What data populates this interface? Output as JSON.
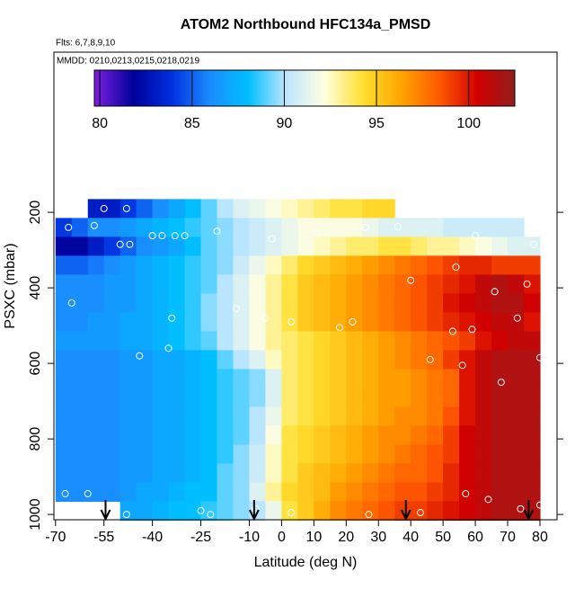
{
  "chart_data": {
    "type": "heatmap",
    "title": "ATOM2 Northbound HFC134a_PMSD",
    "subtitle": "Flts: 6,7,8,9,10",
    "annotation": "MMDD: 0210,0213,0215,0218,0219",
    "xlabel": "Latitude (deg N)",
    "ylabel": "PSXC (mbar)",
    "xlim": [
      -70.5,
      85.3
    ],
    "xticks": [
      -70,
      -55,
      -40,
      -25,
      -10,
      0,
      10,
      20,
      30,
      40,
      50,
      60,
      70,
      80
    ],
    "ylim": [
      1014,
      -224
    ],
    "yticks": [
      200,
      400,
      600,
      800,
      1000
    ],
    "colorbar_lim": [
      79.7,
      102.5
    ],
    "colorbar_ticks": [
      80,
      85,
      90,
      95,
      100
    ],
    "colorscale": [
      "#7a1fe0",
      "#00009a",
      "#0030e0",
      "#1a8cff",
      "#00bfff",
      "#bfe6ff",
      "#ffffe0",
      "#ffe030",
      "#ffa500",
      "#ff5a00",
      "#d20000",
      "#902020"
    ],
    "x_bins": [
      -70,
      -65,
      -60,
      -55,
      -50,
      -45,
      -40,
      -35,
      -30,
      -25,
      -20,
      -15,
      -10,
      -5,
      0,
      5,
      10,
      15,
      20,
      25,
      30,
      35,
      40,
      45,
      50,
      55,
      60,
      65,
      70,
      75,
      80
    ],
    "y_bins": [
      165,
      215,
      265,
      315,
      365,
      415,
      465,
      515,
      565,
      615,
      665,
      715,
      765,
      815,
      865,
      915,
      965,
      1015
    ],
    "values": [
      [
        null,
        null,
        83,
        83,
        84,
        85,
        86,
        87,
        88,
        89,
        90,
        91,
        91.5,
        92,
        92.5,
        93,
        93.5,
        94,
        94,
        94.5,
        94.5,
        null,
        null,
        null,
        null,
        null,
        null,
        null,
        null,
        null
      ],
      [
        84,
        85,
        86,
        86,
        86.5,
        87,
        87.5,
        88,
        88.5,
        89,
        89.5,
        90,
        90.5,
        91,
        91.5,
        92,
        92,
        92,
        92,
        91.5,
        91,
        91,
        91,
        91,
        90.5,
        90.5,
        90.5,
        90.5,
        90.5,
        null
      ],
      [
        82,
        82,
        83,
        84,
        85,
        86,
        86.5,
        87,
        88,
        89,
        89.5,
        90,
        90.5,
        91,
        91.5,
        92,
        92.5,
        93,
        93.5,
        93.5,
        94,
        94,
        93.5,
        93,
        93,
        92.5,
        92,
        91.5,
        91,
        91
      ],
      [
        85,
        85,
        85.5,
        86,
        86.5,
        87,
        87.5,
        88,
        88.5,
        89,
        89.5,
        90.5,
        91.5,
        92.5,
        93.5,
        94.5,
        95,
        95.5,
        96,
        96.5,
        97,
        97.5,
        98,
        98.5,
        99,
        99.5,
        99.5,
        99,
        99,
        99
      ],
      [
        86,
        86,
        86,
        86.5,
        86.5,
        87,
        87.5,
        88,
        88.5,
        89,
        90,
        91,
        92,
        93,
        94,
        95,
        95.5,
        96,
        96.5,
        97,
        97.5,
        98,
        98.5,
        99,
        99.5,
        100,
        101,
        101.5,
        101,
        100
      ],
      [
        86,
        86,
        86,
        86.5,
        86.5,
        87,
        87.5,
        88,
        88.5,
        89.5,
        90,
        91,
        92,
        93,
        94,
        95,
        95.5,
        96,
        96.5,
        97,
        97.5,
        98,
        98.5,
        99,
        100,
        100.5,
        101,
        101.5,
        101.5,
        100.5
      ],
      [
        86,
        86,
        86.5,
        86.5,
        87,
        87,
        87.5,
        88,
        88.5,
        89.5,
        90,
        91,
        92,
        93,
        94,
        95,
        95.5,
        96,
        96.5,
        97,
        97.5,
        98,
        98.5,
        99,
        99.5,
        100,
        100.5,
        101,
        101,
        100
      ],
      [
        86.5,
        86.5,
        86.5,
        86.5,
        87,
        87,
        87.5,
        88,
        88.5,
        89,
        90,
        91,
        92,
        93,
        93.5,
        94,
        94.5,
        95,
        95.5,
        96,
        96.5,
        97,
        97.5,
        98,
        98.5,
        99,
        100,
        100.5,
        101,
        101
      ],
      [
        86,
        86,
        86,
        86,
        86.5,
        86.5,
        87,
        87,
        87.5,
        88,
        89,
        90,
        91,
        92.5,
        93.5,
        94,
        94.5,
        95,
        95.5,
        96,
        96.5,
        97,
        97.5,
        98,
        99,
        100,
        101,
        101.5,
        101.5,
        101.5
      ],
      [
        86,
        86,
        86,
        86,
        86.5,
        86.5,
        87,
        87,
        87.5,
        88,
        88.5,
        89,
        89.5,
        91,
        93.5,
        94,
        94.5,
        95,
        95.5,
        96,
        96.5,
        96.5,
        97,
        97.5,
        98,
        100,
        101,
        101.5,
        101.5,
        101.5
      ],
      [
        86,
        86,
        86,
        86,
        86.5,
        86.5,
        87,
        87,
        87.5,
        88,
        88.5,
        89,
        89.5,
        91,
        93.5,
        94,
        94.5,
        95,
        95.5,
        96,
        96.5,
        96.5,
        97,
        97.5,
        98,
        100,
        101,
        101.5,
        101.5,
        101.5
      ],
      [
        86,
        86,
        86,
        86,
        86.5,
        86.5,
        87,
        87,
        87.5,
        88,
        88.5,
        89,
        90,
        91.5,
        93.5,
        94,
        94.5,
        95,
        95.5,
        96,
        96.5,
        97,
        97,
        97.5,
        98.5,
        100,
        101,
        101.5,
        101.5,
        101.5
      ],
      [
        86,
        86,
        86,
        86,
        86.5,
        86.5,
        87,
        87,
        87.5,
        88,
        88.5,
        89,
        90,
        92,
        94,
        94.5,
        95,
        95.5,
        96,
        96.5,
        97,
        97,
        97.5,
        98,
        99,
        100.5,
        101,
        101.5,
        101.5,
        101.5
      ],
      [
        86,
        86,
        86,
        86,
        86.5,
        86.5,
        87,
        87,
        87.5,
        88,
        88.5,
        89.5,
        90.5,
        92.5,
        94,
        94.5,
        95,
        95.5,
        96,
        96.5,
        97,
        97.5,
        98,
        98.5,
        99,
        100.5,
        101,
        101.5,
        101.5,
        101.5
      ],
      [
        86,
        86,
        86,
        86,
        86.5,
        86.5,
        87,
        87,
        87.5,
        88,
        89,
        89.5,
        90.5,
        92.5,
        94,
        95,
        95.5,
        96,
        96.5,
        97,
        97.5,
        98,
        98,
        98.5,
        99.5,
        100.5,
        101,
        101.5,
        101.5,
        101.5
      ],
      [
        86,
        86,
        86,
        86,
        86.5,
        87,
        87,
        87.5,
        88,
        88,
        89,
        89.5,
        91,
        93,
        94.5,
        95,
        95.5,
        96.5,
        97,
        97.5,
        98,
        98.5,
        98.5,
        99,
        99.5,
        100.5,
        101,
        101.5,
        101.5,
        101.5
      ],
      [
        null,
        null,
        null,
        null,
        87,
        87,
        87.5,
        88,
        88,
        88.5,
        89,
        89.5,
        90,
        91.5,
        94,
        95,
        96,
        97,
        97.5,
        98,
        98.5,
        99,
        99,
        99.5,
        100,
        100.5,
        101,
        101.5,
        101.5,
        101.5
      ]
    ],
    "points": {
      "x": [
        -55,
        -48,
        -66,
        -58,
        -40,
        -37,
        -33,
        -30,
        -50,
        -47,
        -20,
        -3,
        11,
        26,
        36,
        60,
        78,
        66,
        76,
        54,
        40,
        -14,
        -34,
        -65,
        -44,
        -35,
        -5,
        3,
        18,
        22,
        53,
        59,
        73,
        46,
        68,
        56,
        80,
        -67,
        -60,
        -25,
        -8,
        3,
        27,
        43,
        57,
        64,
        74,
        80,
        -22,
        -48
      ],
      "y": [
        190,
        190,
        240,
        235,
        262,
        262,
        262,
        262,
        285,
        285,
        250,
        270,
        255,
        240,
        238,
        262,
        285,
        410,
        390,
        345,
        380,
        455,
        480,
        440,
        580,
        560,
        480,
        490,
        505,
        490,
        515,
        510,
        480,
        590,
        650,
        605,
        585,
        945,
        945,
        990,
        985,
        995,
        1000,
        995,
        945,
        960,
        985,
        975,
        1000,
        1000
      ]
    },
    "markers_x": [
      -54.5,
      -8.5,
      38.5,
      76.5
    ]
  }
}
